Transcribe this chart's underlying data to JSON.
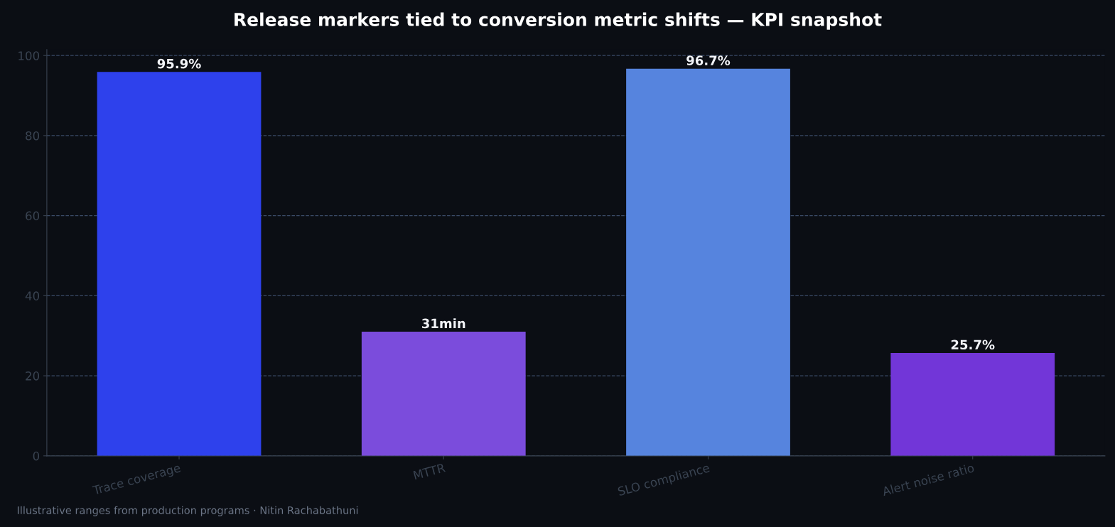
{
  "chart_data": {
    "type": "bar",
    "title": "Release markers tied to conversion metric shifts — KPI snapshot",
    "categories": [
      "Trace coverage",
      "MTTR",
      "SLO compliance",
      "Alert noise ratio"
    ],
    "values": [
      95.9,
      31,
      96.7,
      25.7
    ],
    "colors": [
      "#2e41ec",
      "#7b4cdc",
      "#5684de",
      "#7236d8"
    ],
    "value_labels": [
      "95.9%",
      "31min",
      "96.7%",
      "25.7%"
    ],
    "ylim": [
      0,
      101.5
    ],
    "yticks": [
      0,
      20,
      40,
      60,
      80,
      100
    ],
    "grid": "y",
    "annotations": [
      "Illustrative ranges from production programs · Nitin Rachabathuni"
    ]
  }
}
